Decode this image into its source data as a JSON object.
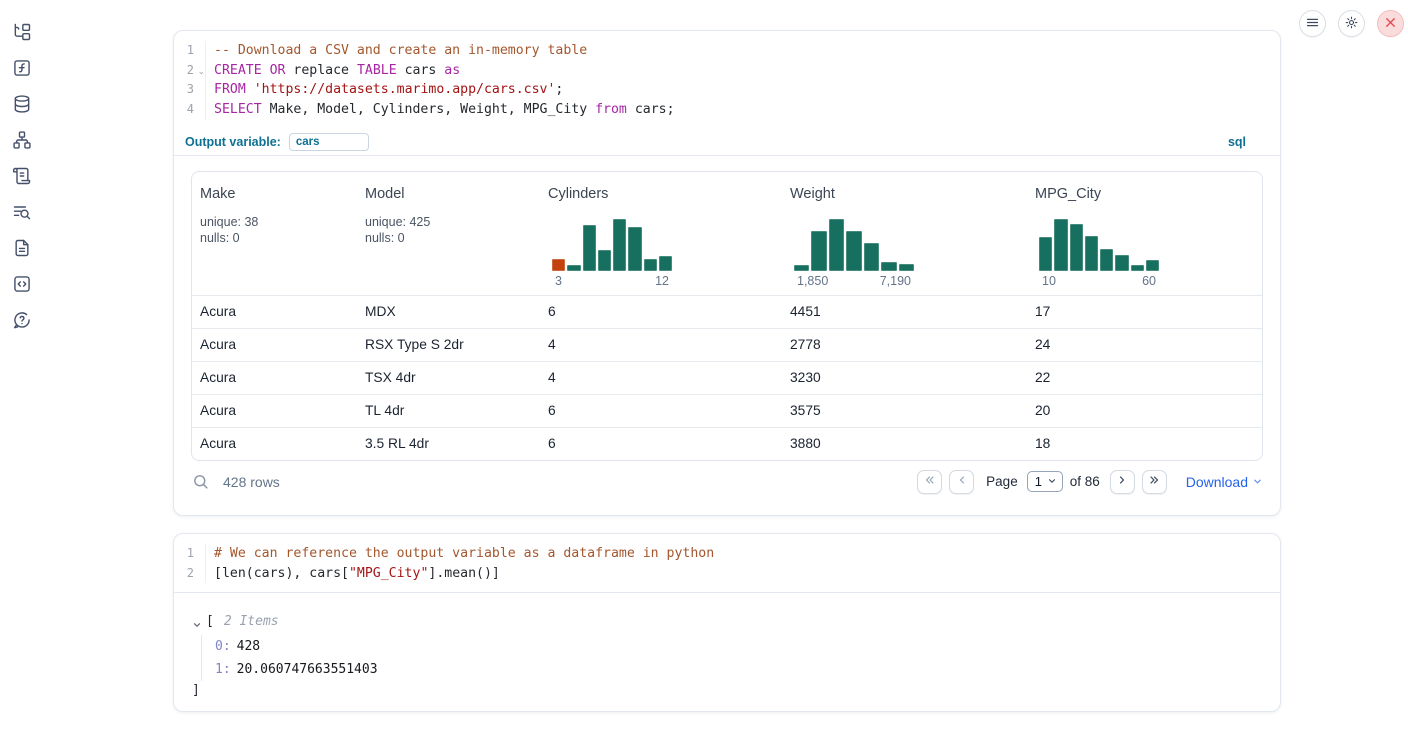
{
  "colors": {
    "accent_blue": "#0e7193",
    "link_blue": "#2563eb",
    "hist_teal": "#17705f",
    "hist_orange": "#c2410c",
    "keyword": "#a626a4",
    "comment": "#a3572e",
    "string": "#a31414"
  },
  "window": {
    "controls": [
      {
        "id": "notebook-menu",
        "icon": "hamburger-icon"
      },
      {
        "id": "settings",
        "icon": "gear-icon"
      },
      {
        "id": "shutdown",
        "icon": "close-icon"
      }
    ]
  },
  "sidebar": {
    "items": [
      {
        "id": "file-explorer",
        "icon": "file-tree-icon"
      },
      {
        "id": "variables",
        "icon": "function-square-icon"
      },
      {
        "id": "data-sources",
        "icon": "database-icon"
      },
      {
        "id": "dependency-graph",
        "icon": "network-icon"
      },
      {
        "id": "logs",
        "icon": "scroll-icon"
      },
      {
        "id": "scratchpad",
        "icon": "list-search-icon"
      },
      {
        "id": "documentation",
        "icon": "file-text-icon"
      },
      {
        "id": "snippets",
        "icon": "code-square-icon"
      },
      {
        "id": "help",
        "icon": "help-bubble-icon"
      }
    ]
  },
  "sql_cell": {
    "lines": [
      {
        "num": "1",
        "tokens": [
          {
            "c": "comment",
            "t": "-- Download a CSV and create an in-memory table"
          }
        ]
      },
      {
        "num": "2",
        "fold": true,
        "tokens": [
          {
            "c": "kw",
            "t": "CREATE"
          },
          {
            "c": "plain",
            "t": " "
          },
          {
            "c": "kw",
            "t": "OR"
          },
          {
            "c": "plain",
            "t": " replace "
          },
          {
            "c": "kw",
            "t": "TABLE"
          },
          {
            "c": "plain",
            "t": " cars "
          },
          {
            "c": "kw",
            "t": "as"
          }
        ]
      },
      {
        "num": "3",
        "tokens": [
          {
            "c": "kw",
            "t": "FROM"
          },
          {
            "c": "plain",
            "t": " "
          },
          {
            "c": "str",
            "t": "'https://datasets.marimo.app/cars.csv'"
          },
          {
            "c": "plain",
            "t": ";"
          }
        ]
      },
      {
        "num": "4",
        "tokens": [
          {
            "c": "kw",
            "t": "SELECT"
          },
          {
            "c": "plain",
            "t": " Make, Model, Cylinders, Weight, MPG_City "
          },
          {
            "c": "kw",
            "t": "from"
          },
          {
            "c": "plain",
            "t": " cars;"
          }
        ]
      }
    ],
    "output_variable": {
      "label": "Output variable:",
      "value": "cars"
    },
    "language": "sql"
  },
  "table": {
    "columns": [
      {
        "label": "Make",
        "stats": [
          "unique: 38",
          "nulls: 0"
        ]
      },
      {
        "label": "Model",
        "stats": [
          "unique: 425",
          "nulls: 0"
        ]
      },
      {
        "label": "Cylinders",
        "histogram": {
          "bars": [
            0.23,
            0.12,
            0.88,
            0.4,
            1.0,
            0.85,
            0.23,
            0.29
          ],
          "highlight_first": true,
          "min_label": "3",
          "max_label": "12"
        }
      },
      {
        "label": "Weight",
        "histogram": {
          "bars": [
            0.12,
            0.77,
            1.0,
            0.77,
            0.54,
            0.17,
            0.13
          ],
          "highlight_first": false,
          "min_label": "1,850",
          "max_label": "7,190"
        }
      },
      {
        "label": "MPG_City",
        "histogram": {
          "bars": [
            0.65,
            1.0,
            0.9,
            0.67,
            0.42,
            0.3,
            0.12,
            0.21
          ],
          "highlight_first": false,
          "min_label": "10",
          "max_label": "60"
        }
      }
    ],
    "rows": [
      [
        "Acura",
        "MDX",
        "6",
        "4451",
        "17"
      ],
      [
        "Acura",
        "RSX Type S 2dr",
        "4",
        "2778",
        "24"
      ],
      [
        "Acura",
        "TSX 4dr",
        "4",
        "3230",
        "22"
      ],
      [
        "Acura",
        "TL 4dr",
        "6",
        "3575",
        "20"
      ],
      [
        "Acura",
        "3.5 RL 4dr",
        "6",
        "3880",
        "18"
      ]
    ],
    "footer": {
      "row_count": "428 rows",
      "page_label": "Page",
      "page_value": "1",
      "of_label": "of 86",
      "download_label": "Download"
    }
  },
  "python_cell": {
    "lines": [
      {
        "num": "1",
        "tokens": [
          {
            "c": "comment",
            "t": "# We can reference the output variable as a dataframe in python"
          }
        ]
      },
      {
        "num": "2",
        "tokens": [
          {
            "c": "plain",
            "t": "[len(cars), cars["
          },
          {
            "c": "str",
            "t": "\"MPG_City\""
          },
          {
            "c": "plain",
            "t": "].mean()]"
          }
        ]
      }
    ]
  },
  "python_output": {
    "bracket_open": "[",
    "items_label": "2 Items",
    "entries": [
      {
        "index": "0:",
        "value": "428"
      },
      {
        "index": "1:",
        "value": "20.060747663551403"
      }
    ],
    "bracket_close": "]"
  }
}
